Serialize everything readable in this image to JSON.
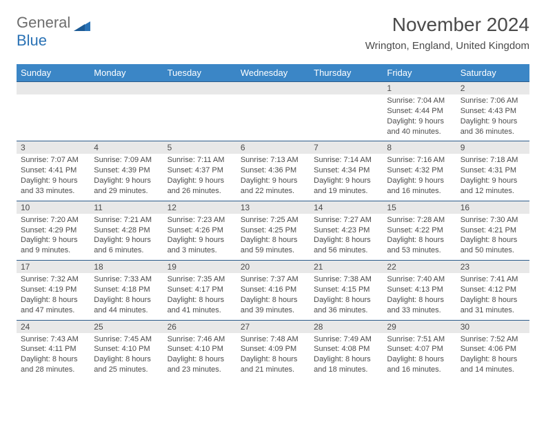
{
  "logo": {
    "text1": "General",
    "text2": "Blue"
  },
  "title": "November 2024",
  "location": "Wrington, England, United Kingdom",
  "colors": {
    "header_bg": "#3b86c6",
    "header_text": "#ffffff",
    "daynum_bg": "#e8e8e8",
    "border_top": "#2a5a8a",
    "text": "#4a4a4a",
    "logo_gray": "#6d6d6d",
    "logo_blue": "#2a72b5"
  },
  "day_headers": [
    "Sunday",
    "Monday",
    "Tuesday",
    "Wednesday",
    "Thursday",
    "Friday",
    "Saturday"
  ],
  "weeks": [
    [
      null,
      null,
      null,
      null,
      null,
      {
        "n": "1",
        "sr": "7:04 AM",
        "ss": "4:44 PM",
        "dl": "9 hours and 40 minutes."
      },
      {
        "n": "2",
        "sr": "7:06 AM",
        "ss": "4:43 PM",
        "dl": "9 hours and 36 minutes."
      }
    ],
    [
      {
        "n": "3",
        "sr": "7:07 AM",
        "ss": "4:41 PM",
        "dl": "9 hours and 33 minutes."
      },
      {
        "n": "4",
        "sr": "7:09 AM",
        "ss": "4:39 PM",
        "dl": "9 hours and 29 minutes."
      },
      {
        "n": "5",
        "sr": "7:11 AM",
        "ss": "4:37 PM",
        "dl": "9 hours and 26 minutes."
      },
      {
        "n": "6",
        "sr": "7:13 AM",
        "ss": "4:36 PM",
        "dl": "9 hours and 22 minutes."
      },
      {
        "n": "7",
        "sr": "7:14 AM",
        "ss": "4:34 PM",
        "dl": "9 hours and 19 minutes."
      },
      {
        "n": "8",
        "sr": "7:16 AM",
        "ss": "4:32 PM",
        "dl": "9 hours and 16 minutes."
      },
      {
        "n": "9",
        "sr": "7:18 AM",
        "ss": "4:31 PM",
        "dl": "9 hours and 12 minutes."
      }
    ],
    [
      {
        "n": "10",
        "sr": "7:20 AM",
        "ss": "4:29 PM",
        "dl": "9 hours and 9 minutes."
      },
      {
        "n": "11",
        "sr": "7:21 AM",
        "ss": "4:28 PM",
        "dl": "9 hours and 6 minutes."
      },
      {
        "n": "12",
        "sr": "7:23 AM",
        "ss": "4:26 PM",
        "dl": "9 hours and 3 minutes."
      },
      {
        "n": "13",
        "sr": "7:25 AM",
        "ss": "4:25 PM",
        "dl": "8 hours and 59 minutes."
      },
      {
        "n": "14",
        "sr": "7:27 AM",
        "ss": "4:23 PM",
        "dl": "8 hours and 56 minutes."
      },
      {
        "n": "15",
        "sr": "7:28 AM",
        "ss": "4:22 PM",
        "dl": "8 hours and 53 minutes."
      },
      {
        "n": "16",
        "sr": "7:30 AM",
        "ss": "4:21 PM",
        "dl": "8 hours and 50 minutes."
      }
    ],
    [
      {
        "n": "17",
        "sr": "7:32 AM",
        "ss": "4:19 PM",
        "dl": "8 hours and 47 minutes."
      },
      {
        "n": "18",
        "sr": "7:33 AM",
        "ss": "4:18 PM",
        "dl": "8 hours and 44 minutes."
      },
      {
        "n": "19",
        "sr": "7:35 AM",
        "ss": "4:17 PM",
        "dl": "8 hours and 41 minutes."
      },
      {
        "n": "20",
        "sr": "7:37 AM",
        "ss": "4:16 PM",
        "dl": "8 hours and 39 minutes."
      },
      {
        "n": "21",
        "sr": "7:38 AM",
        "ss": "4:15 PM",
        "dl": "8 hours and 36 minutes."
      },
      {
        "n": "22",
        "sr": "7:40 AM",
        "ss": "4:13 PM",
        "dl": "8 hours and 33 minutes."
      },
      {
        "n": "23",
        "sr": "7:41 AM",
        "ss": "4:12 PM",
        "dl": "8 hours and 31 minutes."
      }
    ],
    [
      {
        "n": "24",
        "sr": "7:43 AM",
        "ss": "4:11 PM",
        "dl": "8 hours and 28 minutes."
      },
      {
        "n": "25",
        "sr": "7:45 AM",
        "ss": "4:10 PM",
        "dl": "8 hours and 25 minutes."
      },
      {
        "n": "26",
        "sr": "7:46 AM",
        "ss": "4:10 PM",
        "dl": "8 hours and 23 minutes."
      },
      {
        "n": "27",
        "sr": "7:48 AM",
        "ss": "4:09 PM",
        "dl": "8 hours and 21 minutes."
      },
      {
        "n": "28",
        "sr": "7:49 AM",
        "ss": "4:08 PM",
        "dl": "8 hours and 18 minutes."
      },
      {
        "n": "29",
        "sr": "7:51 AM",
        "ss": "4:07 PM",
        "dl": "8 hours and 16 minutes."
      },
      {
        "n": "30",
        "sr": "7:52 AM",
        "ss": "4:06 PM",
        "dl": "8 hours and 14 minutes."
      }
    ]
  ],
  "labels": {
    "sunrise": "Sunrise: ",
    "sunset": "Sunset: ",
    "daylight": "Daylight: "
  }
}
